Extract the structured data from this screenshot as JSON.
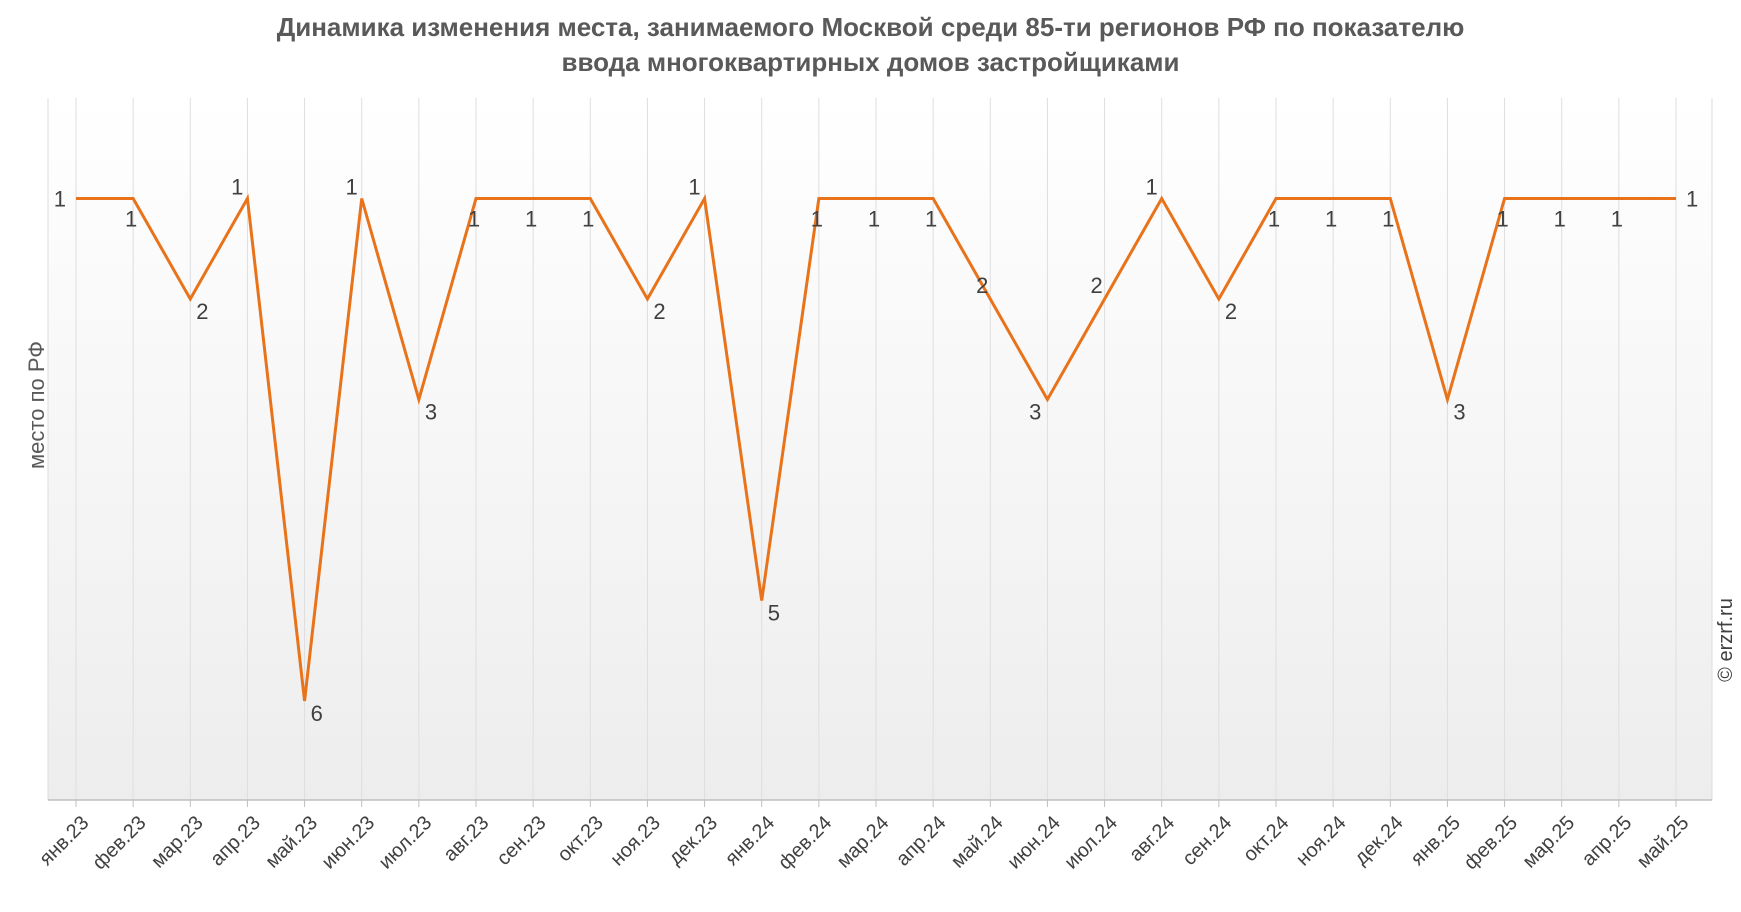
{
  "chart_data": {
    "type": "line",
    "title": "Динамика изменения места, занимаемого Москвой среди 85-ти регионов РФ по показателю",
    "subtitle": "ввода многоквартирных домов застройщиками",
    "ylabel": "место по РФ",
    "xlabel": "",
    "y_axis": {
      "reversed": true,
      "range": [
        7,
        0
      ],
      "tick_labels_shown": false
    },
    "grid": "vertical",
    "categories": [
      "янв.23",
      "фев.23",
      "мар.23",
      "апр.23",
      "май.23",
      "июн.23",
      "июл.23",
      "авг.23",
      "сен.23",
      "окт.23",
      "ноя.23",
      "дек.23",
      "янв.24",
      "фев.24",
      "мар.24",
      "апр.24",
      "май.24",
      "июн.24",
      "июл.24",
      "авг.24",
      "сен.24",
      "окт.24",
      "ноя.24",
      "дек.24",
      "янв.25",
      "фев.25",
      "мар.25",
      "апр.25",
      "май.25"
    ],
    "series": [
      {
        "color": "#e8731a",
        "values": [
          1,
          1,
          2,
          1,
          6,
          1,
          3,
          1,
          1,
          1,
          2,
          1,
          5,
          1,
          1,
          1,
          2,
          3,
          2,
          1,
          2,
          1,
          1,
          1,
          3,
          1,
          1,
          1,
          1
        ]
      }
    ]
  },
  "credit": "© erzrf.ru"
}
